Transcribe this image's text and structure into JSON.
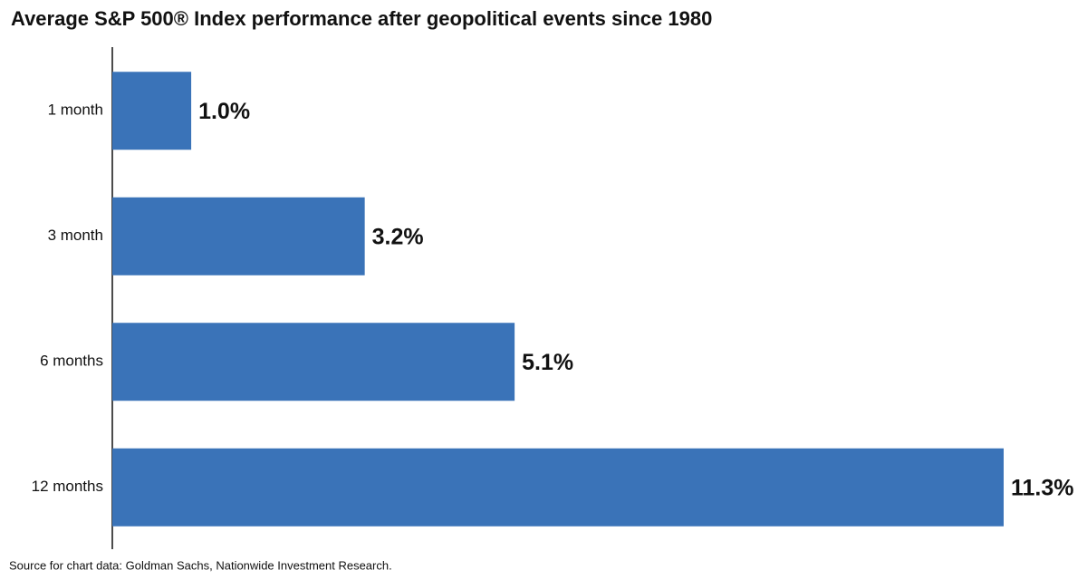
{
  "chart_data": {
    "type": "bar",
    "orientation": "horizontal",
    "title": "Average S&P 500® Index performance after geopolitical events since 1980",
    "categories": [
      "1 month",
      "3 month",
      "6 months",
      "12 months"
    ],
    "values": [
      1.0,
      3.2,
      5.1,
      11.3
    ],
    "value_labels": [
      "1.0%",
      "3.2%",
      "5.1%",
      "11.3%"
    ],
    "color": "#3a73b8",
    "source": "Source for chart data: Goldman Sachs, Nationwide Investment Research."
  }
}
